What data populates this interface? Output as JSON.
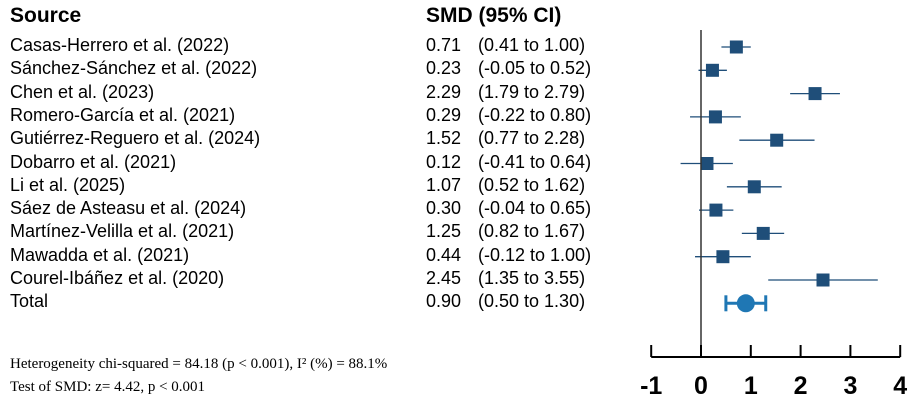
{
  "chart_data": {
    "type": "forest",
    "columns": {
      "source_header": "Source",
      "smd_header": "SMD (95% CI)"
    },
    "studies": [
      {
        "name": "Casas-Herrero et al. (2022)",
        "smd": 0.71,
        "lo": 0.41,
        "hi": 1.0,
        "smd_text": "0.71",
        "ci_text": "(0.41 to 1.00)"
      },
      {
        "name": "Sánchez-Sánchez et al. (2022)",
        "smd": 0.23,
        "lo": -0.05,
        "hi": 0.52,
        "smd_text": "0.23",
        "ci_text": "(-0.05 to 0.52)"
      },
      {
        "name": "Chen et al. (2023)",
        "smd": 2.29,
        "lo": 1.79,
        "hi": 2.79,
        "smd_text": "2.29",
        "ci_text": "(1.79 to 2.79)"
      },
      {
        "name": "Romero-García et al. (2021)",
        "smd": 0.29,
        "lo": -0.22,
        "hi": 0.8,
        "smd_text": "0.29",
        "ci_text": "(-0.22 to 0.80)"
      },
      {
        "name": "Gutiérrez-Reguero et al. (2024)",
        "smd": 1.52,
        "lo": 0.77,
        "hi": 2.28,
        "smd_text": "1.52",
        "ci_text": "(0.77 to 2.28)"
      },
      {
        "name": "Dobarro et al. (2021)",
        "smd": 0.12,
        "lo": -0.41,
        "hi": 0.64,
        "smd_text": "0.12",
        "ci_text": "(-0.41 to 0.64)"
      },
      {
        "name": "Li et al. (2025)",
        "smd": 1.07,
        "lo": 0.52,
        "hi": 1.62,
        "smd_text": "1.07",
        "ci_text": "(0.52 to 1.62)"
      },
      {
        "name": "Sáez de Asteasu et al. (2024)",
        "smd": 0.3,
        "lo": -0.04,
        "hi": 0.65,
        "smd_text": "0.30",
        "ci_text": "(-0.04 to 0.65)"
      },
      {
        "name": "Martínez-Velilla et al. (2021)",
        "smd": 1.25,
        "lo": 0.82,
        "hi": 1.67,
        "smd_text": "1.25",
        "ci_text": "(0.82 to 1.67)"
      },
      {
        "name": "Mawadda et al. (2021)",
        "smd": 0.44,
        "lo": -0.12,
        "hi": 1.0,
        "smd_text": "0.44",
        "ci_text": "(-0.12 to 1.00)"
      },
      {
        "name": "Courel-Ibáñez et al. (2020)",
        "smd": 2.45,
        "lo": 1.35,
        "hi": 3.55,
        "smd_text": "2.45",
        "ci_text": "(1.35 to 3.55)"
      }
    ],
    "total": {
      "name": "Total",
      "smd": 0.9,
      "lo": 0.5,
      "hi": 1.3,
      "smd_text": "0.90",
      "ci_text": "(0.50 to 1.30)"
    },
    "x_axis": {
      "ticks": [
        -1,
        0,
        1,
        2,
        3,
        4
      ],
      "range": [
        -1,
        4
      ],
      "reference_line": 0
    },
    "notes": {
      "heterogeneity": "Heterogeneity chi-squared = 84.18 (p < 0.001), I² (%) = 88.1%",
      "test": "Test of SMD: z= 4.42, p < 0.001"
    },
    "colors": {
      "study_marker": "#1f4e79",
      "total_marker": "#1f77b4",
      "ci_line": "#1f4e79",
      "reference_line": "#333333",
      "axis": "#000000"
    }
  }
}
